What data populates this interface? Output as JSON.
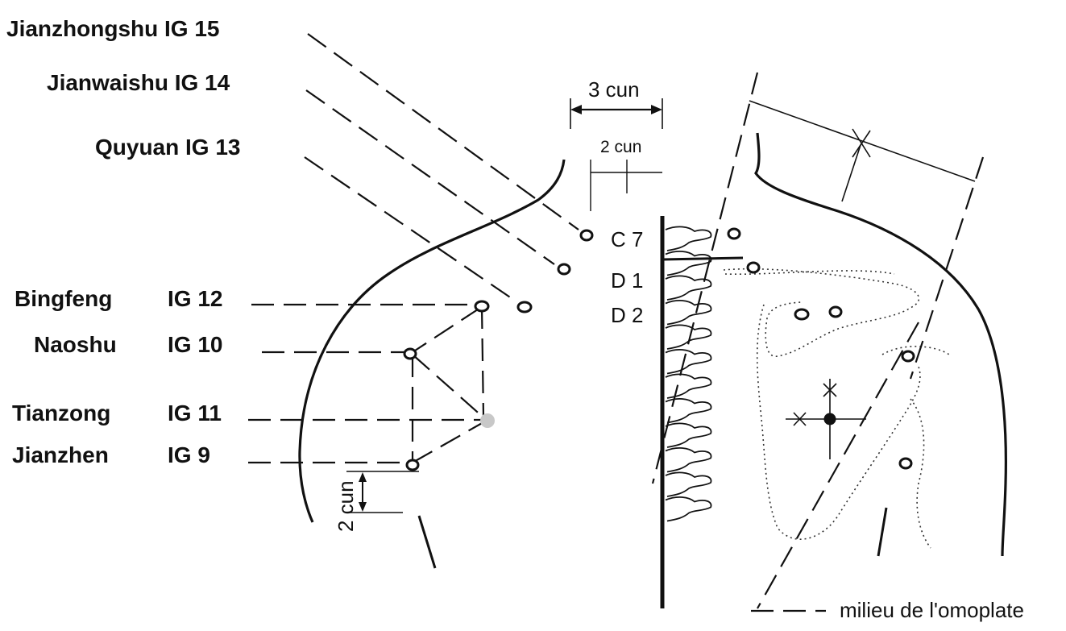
{
  "labels": {
    "ig15": "Jianzhongshu IG 15",
    "ig14": "Jianwaishu IG 14",
    "ig13": "Quyuan IG 13",
    "ig12_name": "Bingfeng",
    "ig12_code": "IG 12",
    "ig10_name": "Naoshu",
    "ig10_code": "IG 10",
    "ig11_name": "Tianzong",
    "ig11_code": "IG 11",
    "ig9_name": "Jianzhen",
    "ig9_code": "IG 9"
  },
  "measures": {
    "three_cun": "3 cun",
    "two_cun_top": "2 cun",
    "two_cun_side": "2 cun"
  },
  "vertebrae": {
    "c7": "C 7",
    "d1": "D 1",
    "d2": "D 2"
  },
  "legend": {
    "dashed_line_text": "milieu de l'omoplate"
  },
  "colors": {
    "ink": "#111111",
    "highlight_point": "#c8c8c8"
  }
}
